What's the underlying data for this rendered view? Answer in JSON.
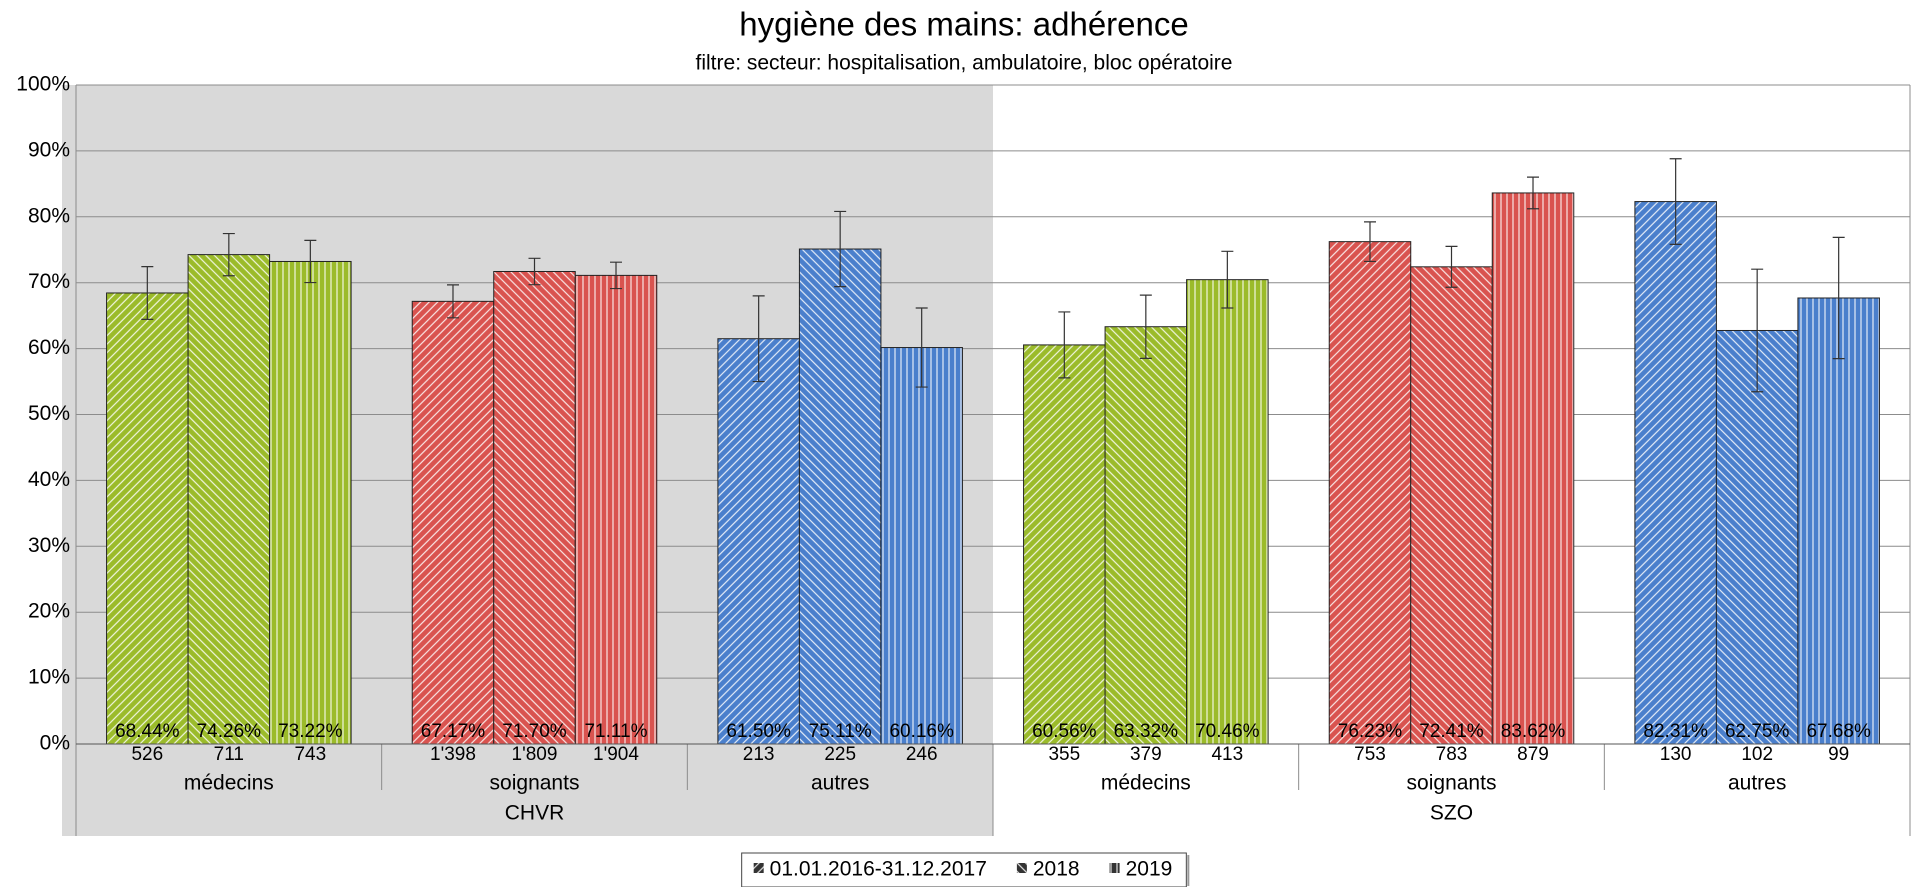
{
  "chart_data": {
    "type": "bar",
    "title": "hygiène des mains: adhérence",
    "subtitle": "filtre: secteur: hospitalisation, ambulatoire, bloc opératoire",
    "categories": [
      "médecins",
      "soignants",
      "autres",
      "médecins",
      "soignants",
      "autres"
    ],
    "category_colors": [
      "#9bbb2a",
      "#d9534f",
      "#4a7fcc",
      "#9bbb2a",
      "#d9534f",
      "#4a7fcc"
    ],
    "groups": [
      {
        "name": "CHVR",
        "shaded": true
      },
      {
        "name": "SZO",
        "shaded": false
      }
    ],
    "series": [
      {
        "name": "01.01.2016-31.12.2017",
        "pattern": "diagonal-up",
        "values": [
          68.44,
          67.17,
          61.5,
          60.56,
          76.23,
          82.31
        ],
        "value_labels": [
          "68.44%",
          "67.17%",
          "61.50%",
          "60.56%",
          "76.23%",
          "82.31%"
        ],
        "errors": [
          4,
          2.5,
          6.5,
          5,
          3,
          6.5
        ],
        "n_labels": [
          "526",
          "1'398",
          "213",
          "355",
          "753",
          "130"
        ]
      },
      {
        "name": "2018",
        "pattern": "diagonal-down",
        "values": [
          74.26,
          71.7,
          75.11,
          63.32,
          72.41,
          62.75
        ],
        "value_labels": [
          "74.26%",
          "71.70%",
          "75.11%",
          "63.32%",
          "72.41%",
          "62.75%"
        ],
        "errors": [
          3.2,
          2,
          5.7,
          4.8,
          3.1,
          9.3
        ],
        "n_labels": [
          "711",
          "1'809",
          "225",
          "379",
          "783",
          "102"
        ]
      },
      {
        "name": "2019",
        "pattern": "vertical",
        "values": [
          73.22,
          71.11,
          60.16,
          70.46,
          83.62,
          67.68
        ],
        "value_labels": [
          "73.22%",
          "71.11%",
          "60.16%",
          "70.46%",
          "83.62%",
          "67.68%"
        ],
        "errors": [
          3.2,
          2,
          6,
          4.3,
          2.4,
          9.2
        ],
        "n_labels": [
          "743",
          "1'904",
          "246",
          "413",
          "879",
          "99"
        ]
      }
    ],
    "ylim": [
      0,
      100
    ],
    "yticks": [
      {
        "value": 0,
        "label": "0%"
      },
      {
        "value": 10,
        "label": "10%"
      },
      {
        "value": 20,
        "label": "20%"
      },
      {
        "value": 30,
        "label": "30%"
      },
      {
        "value": 40,
        "label": "40%"
      },
      {
        "value": 50,
        "label": "50%"
      },
      {
        "value": 60,
        "label": "60%"
      },
      {
        "value": 70,
        "label": "70%"
      },
      {
        "value": 80,
        "label": "80%"
      },
      {
        "value": 90,
        "label": "90%"
      },
      {
        "value": 100,
        "label": "100%"
      }
    ],
    "grid": true,
    "legend": "bottom"
  }
}
